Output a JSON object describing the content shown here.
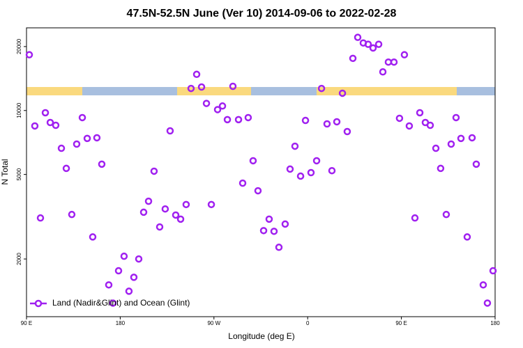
{
  "chart_data": {
    "type": "scatter",
    "title": "47.5N-52.5N June (Ver 10)   2014-09-06 to 2022-02-28",
    "xlabel": "Longitude (deg E)",
    "ylabel": "N Total",
    "log_y": true,
    "legend": "lower left",
    "xlim": [
      90,
      540
    ],
    "ylim": [
      1070,
      24500
    ],
    "xticks": [
      {
        "value": 90,
        "label": "90 E"
      },
      180,
      {
        "value": 270,
        "label": "90 W"
      },
      {
        "value": 360,
        "label": "0"
      },
      {
        "value": 450,
        "label": "90 E"
      },
      {
        "value": 540,
        "label": "180"
      }
    ],
    "yticks": [
      2000,
      5000,
      10000,
      20000
    ],
    "series": [
      {
        "name": "Land (Nadir&Glint) and Ocean (Glint)",
        "color": "#a020f0",
        "x": [
          92.7,
          98.0,
          103.4,
          108.1,
          112.8,
          118.1,
          123.5,
          128.2,
          133.5,
          138.2,
          143.6,
          148.3,
          153.6,
          157.6,
          162.3,
          169.0,
          173.0,
          178.4,
          183.7,
          188.4,
          193.1,
          197.8,
          202.5,
          207.2,
          212.5,
          217.9,
          223.2,
          227.9,
          233.3,
          238.0,
          243.3,
          248.0,
          253.4,
          258.1,
          262.8,
          267.5,
          273.5,
          278.2,
          282.9,
          288.2,
          293.6,
          297.6,
          302.9,
          307.6,
          312.3,
          317.7,
          323.0,
          327.7,
          332.4,
          338.4,
          343.1,
          347.8,
          353.2,
          357.9,
          363.2,
          368.6,
          373.3,
          378.6,
          383.3,
          388.0,
          393.4,
          398.0,
          403.4,
          408.1,
          413.4,
          418.1,
          422.8,
          428.2,
          432.2,
          437.5,
          442.9,
          448.2,
          452.9,
          457.6,
          463.0,
          467.7,
          473.0,
          477.7,
          483.1,
          487.7,
          493.1,
          497.8,
          502.5,
          507.2,
          513.2,
          517.9,
          521.9,
          528.6,
          532.6,
          538.0
        ],
        "values": [
          18300,
          8460,
          3120,
          9760,
          8780,
          8520,
          6640,
          5340,
          3240,
          6950,
          9260,
          7390,
          2540,
          7440,
          5590,
          1510,
          1240,
          1760,
          2060,
          1410,
          1640,
          2000,
          3320,
          3740,
          5180,
          2830,
          3440,
          8020,
          3220,
          3080,
          3610,
          12700,
          14800,
          12900,
          10800,
          3610,
          10100,
          10500,
          9060,
          13000,
          9060,
          4550,
          9260,
          5800,
          4190,
          2720,
          3080,
          2700,
          2270,
          2920,
          5300,
          6790,
          4910,
          8980,
          5100,
          5800,
          12700,
          8650,
          5210,
          8850,
          12060,
          7960,
          17600,
          22100,
          20800,
          20500,
          19700,
          20500,
          15200,
          16900,
          16900,
          9190,
          18300,
          8460,
          3120,
          9760,
          8780,
          8520,
          6640,
          5340,
          3240,
          6950,
          9260,
          7390,
          2540,
          7440,
          5590,
          1510,
          1240,
          1760
        ]
      }
    ]
  }
}
